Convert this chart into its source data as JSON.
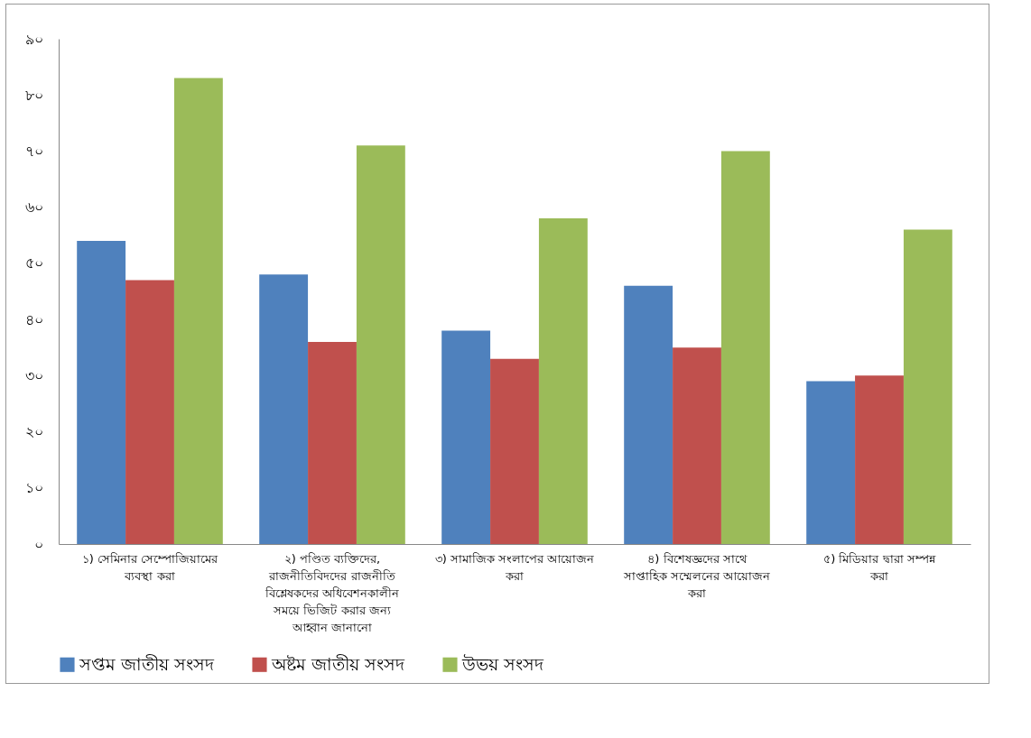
{
  "chart_data": {
    "type": "bar",
    "categories": [
      "১) সেমিনার সেম্পোজিয়ামের ব্যবস্থা করা",
      "২) পণ্ডিত ব্যক্তিদের, রাজনীতিবিদদের রাজনীতি বিশ্লেষকদের অধিবেশনকালীন সময়ে ভিজিট করার জন্য আহ্বান জানানো",
      "৩) সামাজিক সংলাপের আয়োজন করা",
      "৪) বিশেষজ্ঞদের সাথে সাপ্তাহিক সম্মেলনের আয়োজন করা",
      "৫) মিডিয়ার দ্বারা সম্পন্ন করা"
    ],
    "series": [
      {
        "name": "সপ্তম জাতীয় সংসদ",
        "color": "#4f81bd",
        "values": [
          54,
          48,
          38,
          46,
          29
        ]
      },
      {
        "name": "অষ্টম জাতীয় সংসদ",
        "color": "#c0504d",
        "values": [
          47,
          36,
          33,
          35,
          30
        ]
      },
      {
        "name": "উভয় সংসদ",
        "color": "#9bbb59",
        "values": [
          83,
          71,
          58,
          70,
          56
        ]
      }
    ],
    "ylim": [
      0,
      90
    ],
    "yticks": [
      {
        "value": 0,
        "label": "০"
      },
      {
        "value": 10,
        "label": "১০"
      },
      {
        "value": 20,
        "label": "২০"
      },
      {
        "value": 30,
        "label": "৩০"
      },
      {
        "value": 40,
        "label": "৪০"
      },
      {
        "value": 50,
        "label": "৫০"
      },
      {
        "value": 60,
        "label": "৬০"
      },
      {
        "value": 70,
        "label": "৭০"
      },
      {
        "value": 80,
        "label": "৮০"
      },
      {
        "value": 90,
        "label": "৯০"
      }
    ],
    "grid": false,
    "legend": "bottom"
  }
}
